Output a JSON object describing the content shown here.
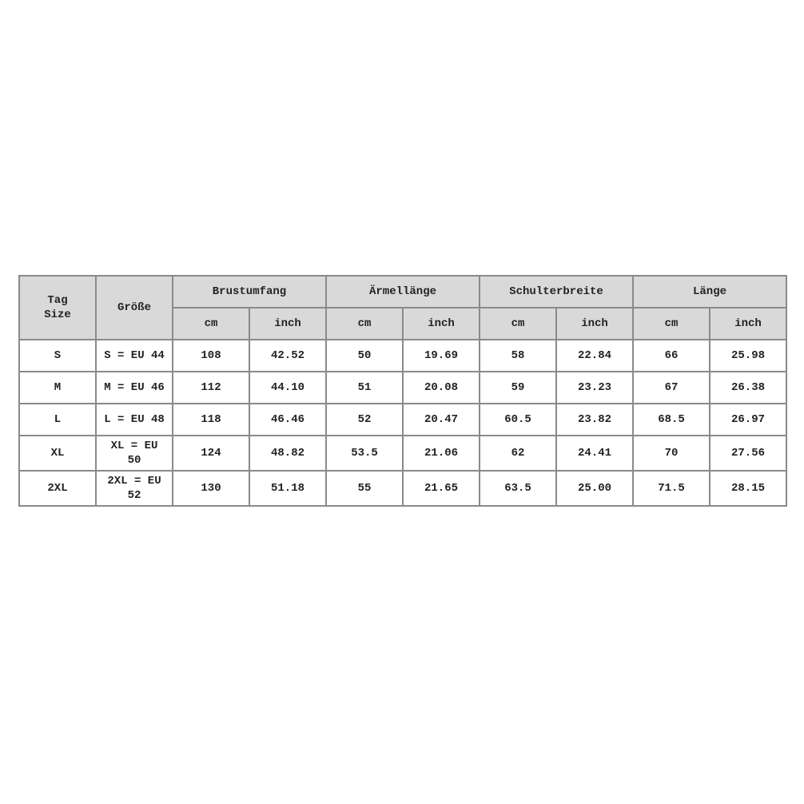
{
  "header": {
    "tag_size": [
      "Tag",
      "Size"
    ],
    "groesse": "Größe",
    "groups": [
      "Brustumfang",
      "Ärmellänge",
      "Schulterbreite",
      "Länge"
    ],
    "units": [
      "cm",
      "inch"
    ]
  },
  "rows": [
    {
      "tag": "S",
      "eu": "S = EU 44",
      "values": [
        "108",
        "42.52",
        "50",
        "19.69",
        "58",
        "22.84",
        "66",
        "25.98"
      ]
    },
    {
      "tag": "M",
      "eu": "M = EU 46",
      "values": [
        "112",
        "44.10",
        "51",
        "20.08",
        "59",
        "23.23",
        "67",
        "26.38"
      ]
    },
    {
      "tag": "L",
      "eu": "L = EU 48",
      "values": [
        "118",
        "46.46",
        "52",
        "20.47",
        "60.5",
        "23.82",
        "68.5",
        "26.97"
      ]
    },
    {
      "tag": "XL",
      "eu": "XL = EU 50",
      "values": [
        "124",
        "48.82",
        "53.5",
        "21.06",
        "62",
        "24.41",
        "70",
        "27.56"
      ]
    },
    {
      "tag": "2XL",
      "eu": "2XL = EU 52",
      "values": [
        "130",
        "51.18",
        "55",
        "21.65",
        "63.5",
        "25.00",
        "71.5",
        "28.15"
      ]
    }
  ],
  "colors": {
    "header_bg": "#d9d9d9",
    "border": "#8a8a8a"
  }
}
